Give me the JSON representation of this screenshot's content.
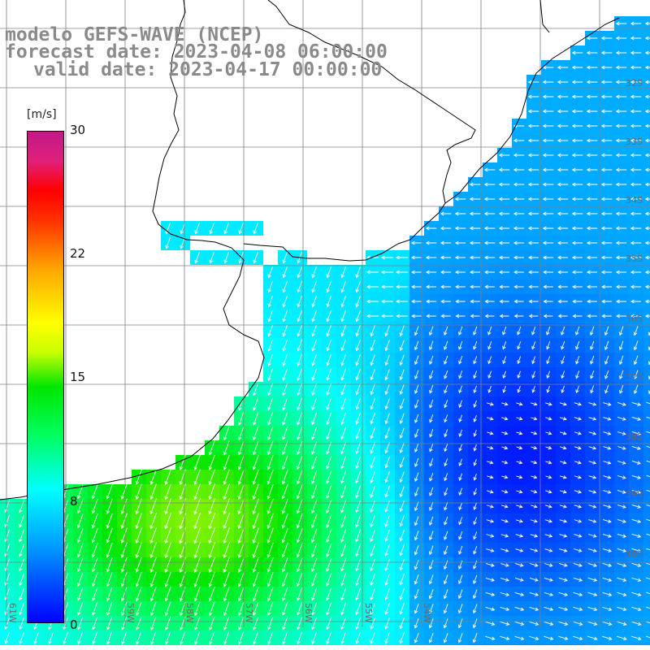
{
  "title": {
    "line1": "modelo GEFS-WAVE (NCEP)",
    "line2": "forecast date: 2023-04-08 06:00:00",
    "line3": "valid date: 2023-04-17 00:00:00"
  },
  "colorbar": {
    "unit": "[m/s]",
    "ticks": [
      "30",
      "22",
      "15",
      "8",
      "0"
    ],
    "tick_values": [
      30,
      22,
      15,
      8,
      0
    ],
    "range": [
      0,
      30
    ],
    "colors": [
      "#0000ff",
      "#00a0ff",
      "#00ffff",
      "#00ff60",
      "#00e600",
      "#ffff00",
      "#ffa500",
      "#ff0000",
      "#c01a8a"
    ]
  },
  "axes": {
    "lat_labels": [
      "32S",
      "33S",
      "34S",
      "35S",
      "36S",
      "37S",
      "38S",
      "39S",
      "40S"
    ],
    "lon_labels": [
      "61W",
      "59W",
      "58W",
      "57W",
      "56W",
      "55W",
      "54W"
    ]
  },
  "colors": {
    "land": "#ffffff",
    "coast": "#000000",
    "grid": "#808080",
    "arrows": "#ffffff"
  }
}
